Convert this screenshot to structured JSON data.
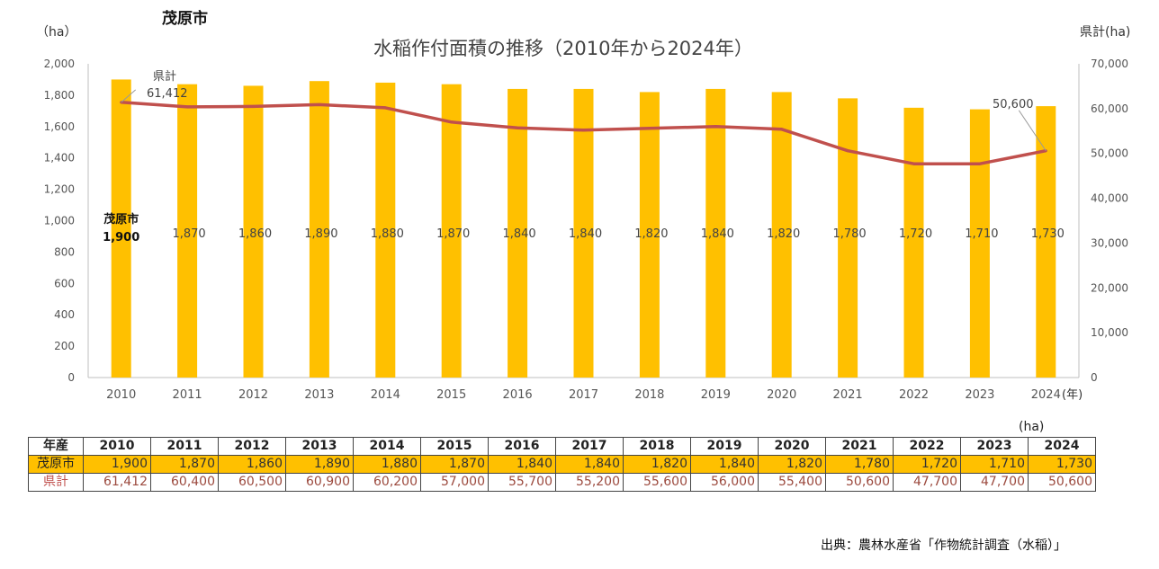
{
  "page": {
    "city_title": "茂原市",
    "unit_note": "(ha)",
    "source": "出典：農林水産省「作物統計調査（水稲）」"
  },
  "chart_data": {
    "type": "bar",
    "title": "水稲作付面積の推移（2010年から2024年）",
    "left_axis_unit": "（ha）",
    "right_axis_unit": "県計(ha)",
    "x_unit": "(年)",
    "categories": [
      "2010",
      "2011",
      "2012",
      "2013",
      "2014",
      "2015",
      "2016",
      "2017",
      "2018",
      "2019",
      "2020",
      "2021",
      "2022",
      "2023",
      "2024"
    ],
    "y_ticks": [
      "0",
      "200",
      "400",
      "600",
      "800",
      "1,000",
      "1,200",
      "1,400",
      "1,600",
      "1,800",
      "2,000"
    ],
    "y2_ticks": [
      "0",
      "10,000",
      "20,000",
      "30,000",
      "40,000",
      "50,000",
      "60,000",
      "70,000"
    ],
    "ylim": [
      0,
      2000
    ],
    "y2lim": [
      0,
      70000
    ],
    "grid": false,
    "series": [
      {
        "name": "茂原市",
        "type": "bar",
        "color": "#FFC000",
        "values": [
          1900,
          1870,
          1860,
          1890,
          1880,
          1870,
          1840,
          1840,
          1820,
          1840,
          1820,
          1780,
          1720,
          1710,
          1730
        ],
        "labels": [
          "1,900",
          "1,870",
          "1,860",
          "1,890",
          "1,880",
          "1,870",
          "1,840",
          "1,840",
          "1,820",
          "1,840",
          "1,820",
          "1,780",
          "1,720",
          "1,710",
          "1,730"
        ]
      },
      {
        "name": "県計",
        "type": "line",
        "axis": "right",
        "color": "#C0504D",
        "values": [
          61412,
          60400,
          60500,
          60900,
          60200,
          57000,
          55700,
          55200,
          55600,
          56000,
          55400,
          50600,
          47700,
          47700,
          50600
        ],
        "labels": [
          "61,412",
          "60,400",
          "60,500",
          "60,900",
          "60,200",
          "57,000",
          "55,700",
          "55,200",
          "55,600",
          "56,000",
          "55,400",
          "50,600",
          "47,700",
          "47,700",
          "50,600"
        ]
      }
    ],
    "annotations": {
      "first_bar_series": "茂原市",
      "first_bar_value": "1,900",
      "line_start_name": "県計",
      "line_start_value": "61,412",
      "line_end_value": "50,600"
    }
  },
  "table": {
    "header_label": "年産",
    "row1_label": "茂原市",
    "row2_label": "県計"
  }
}
